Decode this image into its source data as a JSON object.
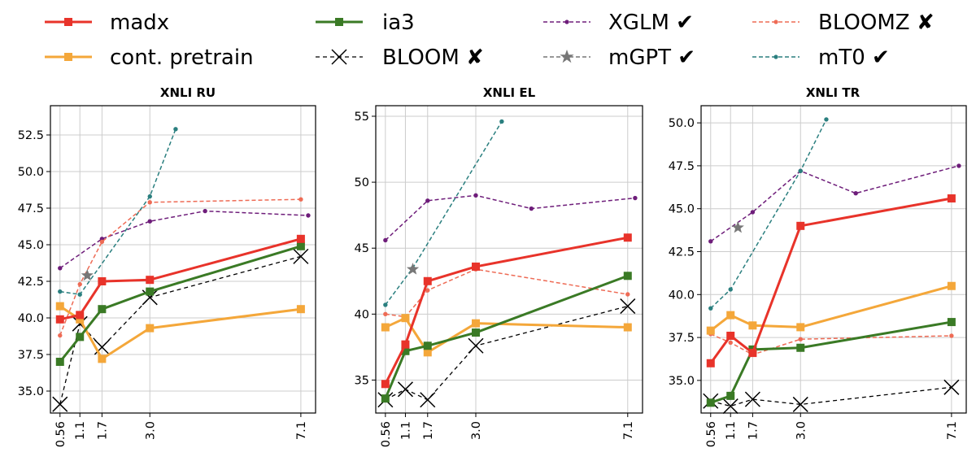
{
  "legend": {
    "entries": [
      {
        "label": "madx",
        "series": "madx"
      },
      {
        "label": "cont. pretrain",
        "series": "cont_pretrain"
      },
      {
        "label": "ia3",
        "series": "ia3"
      },
      {
        "label": "BLOOM ✘",
        "series": "bloom"
      },
      {
        "label": "XGLM ✔",
        "series": "xglm"
      },
      {
        "label": "mGPT ✔",
        "series": "mgpt"
      },
      {
        "label": "BLOOMZ ✘",
        "series": "bloomz"
      },
      {
        "label": "mT0 ✔",
        "series": "mt0"
      }
    ]
  },
  "styles": {
    "madx": {
      "color": "#e8332a",
      "width": 3,
      "dash": "",
      "marker": "square",
      "size": 10
    },
    "cont_pretrain": {
      "color": "#f4a73a",
      "width": 3,
      "dash": "",
      "marker": "square",
      "size": 10
    },
    "ia3": {
      "color": "#3a7a25",
      "width": 3,
      "dash": "",
      "marker": "square",
      "size": 10
    },
    "bloom": {
      "color": "#000000",
      "width": 1.3,
      "dash": "5,4",
      "marker": "x",
      "size": 18
    },
    "xglm": {
      "color": "#6e1d7a",
      "width": 1.5,
      "dash": "5,3",
      "marker": "dot",
      "size": 5
    },
    "mgpt": {
      "color": "#777777",
      "width": 1.5,
      "dash": "5,3",
      "marker": "star",
      "size": 16
    },
    "bloomz": {
      "color": "#ee6b55",
      "width": 1.5,
      "dash": "5,3",
      "marker": "dot",
      "size": 5
    },
    "mt0": {
      "color": "#2a7f7f",
      "width": 1.5,
      "dash": "5,3",
      "marker": "dot",
      "size": 5
    }
  },
  "chart_data": [
    {
      "type": "line",
      "title": "XNLI RU",
      "xlabel": "",
      "ylabel": "",
      "xlim": [
        0.3,
        7.5
      ],
      "ylim": [
        33.5,
        54.5
      ],
      "xticks": [
        "0.56",
        "1.1",
        "1.7",
        "3.0",
        "7.1"
      ],
      "xtick_values": [
        0.56,
        1.1,
        1.7,
        3.0,
        7.1
      ],
      "yticks": [
        "35.0",
        "37.5",
        "40.0",
        "42.5",
        "45.0",
        "47.5",
        "50.0",
        "52.5"
      ],
      "ytick_values": [
        35.0,
        37.5,
        40.0,
        42.5,
        45.0,
        47.5,
        50.0,
        52.5
      ],
      "series": [
        {
          "name": "xglm",
          "x": [
            0.56,
            1.7,
            3.0,
            4.5,
            7.3
          ],
          "y": [
            43.4,
            45.4,
            46.6,
            47.3,
            47.0
          ]
        },
        {
          "name": "bloomz",
          "x": [
            0.56,
            1.1,
            1.7,
            3.0,
            7.1
          ],
          "y": [
            38.8,
            42.3,
            45.2,
            47.9,
            48.1
          ]
        },
        {
          "name": "mt0",
          "x": [
            0.56,
            1.1,
            3.0,
            3.7
          ],
          "y": [
            41.8,
            41.6,
            48.3,
            52.9
          ]
        },
        {
          "name": "bloom",
          "x": [
            0.56,
            1.1,
            1.7,
            3.0,
            7.1
          ],
          "y": [
            34.1,
            39.6,
            38.0,
            41.4,
            44.2
          ]
        },
        {
          "name": "cont_pretrain",
          "x": [
            0.56,
            1.1,
            1.7,
            3.0,
            7.1
          ],
          "y": [
            40.8,
            39.9,
            37.2,
            39.3,
            40.6
          ]
        },
        {
          "name": "ia3",
          "x": [
            0.56,
            1.1,
            1.7,
            3.0,
            7.1
          ],
          "y": [
            37.0,
            38.7,
            40.6,
            41.8,
            44.9
          ]
        },
        {
          "name": "madx",
          "x": [
            0.56,
            1.1,
            1.7,
            3.0,
            7.1
          ],
          "y": [
            39.9,
            40.2,
            42.5,
            42.6,
            45.4
          ]
        },
        {
          "name": "mgpt",
          "x": [
            1.3
          ],
          "y": [
            42.9
          ]
        }
      ]
    },
    {
      "type": "line",
      "title": "XNLI EL",
      "xlabel": "",
      "ylabel": "",
      "xlim": [
        0.3,
        7.5
      ],
      "ylim": [
        32.5,
        55.8
      ],
      "xticks": [
        "0.56",
        "1.1",
        "1.7",
        "3.0",
        "7.1"
      ],
      "xtick_values": [
        0.56,
        1.1,
        1.7,
        3.0,
        7.1
      ],
      "yticks": [
        "35",
        "40",
        "45",
        "50",
        "55"
      ],
      "ytick_values": [
        35,
        40,
        45,
        50,
        55
      ],
      "series": [
        {
          "name": "xglm",
          "x": [
            0.56,
            1.7,
            3.0,
            4.5,
            7.3
          ],
          "y": [
            45.6,
            48.6,
            49.0,
            48.0,
            48.8
          ]
        },
        {
          "name": "bloomz",
          "x": [
            0.56,
            1.1,
            1.7,
            3.0,
            7.1
          ],
          "y": [
            40.0,
            39.8,
            41.8,
            43.4,
            41.5
          ]
        },
        {
          "name": "mt0",
          "x": [
            0.56,
            1.3,
            3.7
          ],
          "y": [
            40.7,
            43.5,
            54.6
          ]
        },
        {
          "name": "bloom",
          "x": [
            0.56,
            1.1,
            1.7,
            3.0,
            7.1
          ],
          "y": [
            33.5,
            34.3,
            33.5,
            37.6,
            40.6
          ]
        },
        {
          "name": "cont_pretrain",
          "x": [
            0.56,
            1.1,
            1.7,
            3.0,
            7.1
          ],
          "y": [
            39.0,
            39.7,
            37.1,
            39.3,
            39.0
          ]
        },
        {
          "name": "ia3",
          "x": [
            0.56,
            1.1,
            1.7,
            3.0,
            7.1
          ],
          "y": [
            33.6,
            37.2,
            37.6,
            38.6,
            42.9
          ]
        },
        {
          "name": "madx",
          "x": [
            0.56,
            1.1,
            1.7,
            3.0,
            7.1
          ],
          "y": [
            34.7,
            37.7,
            42.5,
            43.6,
            45.8
          ]
        },
        {
          "name": "mgpt",
          "x": [
            1.3
          ],
          "y": [
            43.4
          ]
        }
      ]
    },
    {
      "type": "line",
      "title": "XNLI TR",
      "xlabel": "",
      "ylabel": "",
      "xlim": [
        0.3,
        7.5
      ],
      "ylim": [
        33.1,
        51.0
      ],
      "xticks": [
        "0.56",
        "1.1",
        "1.7",
        "3.0",
        "7.1"
      ],
      "xtick_values": [
        0.56,
        1.1,
        1.7,
        3.0,
        7.1
      ],
      "yticks": [
        "35.0",
        "37.5",
        "40.0",
        "42.5",
        "45.0",
        "47.5",
        "50.0"
      ],
      "ytick_values": [
        35.0,
        37.5,
        40.0,
        42.5,
        45.0,
        47.5,
        50.0
      ],
      "series": [
        {
          "name": "xglm",
          "x": [
            0.56,
            1.7,
            3.0,
            4.5,
            7.3
          ],
          "y": [
            43.1,
            44.8,
            47.2,
            45.9,
            47.5
          ]
        },
        {
          "name": "bloomz",
          "x": [
            0.56,
            1.1,
            1.7,
            3.0,
            7.1
          ],
          "y": [
            37.7,
            37.2,
            36.5,
            37.4,
            37.6
          ]
        },
        {
          "name": "mt0",
          "x": [
            0.56,
            1.1,
            3.0,
            3.7
          ],
          "y": [
            39.2,
            40.3,
            47.2,
            50.2
          ]
        },
        {
          "name": "bloom",
          "x": [
            0.56,
            1.1,
            1.7,
            3.0,
            7.1
          ],
          "y": [
            33.8,
            33.5,
            33.9,
            33.6,
            34.6
          ]
        },
        {
          "name": "cont_pretrain",
          "x": [
            0.56,
            1.1,
            1.7,
            3.0,
            7.1
          ],
          "y": [
            37.9,
            38.8,
            38.2,
            38.1,
            40.5
          ]
        },
        {
          "name": "ia3",
          "x": [
            0.56,
            1.1,
            1.7,
            3.0,
            7.1
          ],
          "y": [
            33.7,
            34.1,
            36.8,
            36.9,
            38.4
          ]
        },
        {
          "name": "madx",
          "x": [
            0.56,
            1.1,
            1.7,
            3.0,
            7.1
          ],
          "y": [
            36.0,
            37.6,
            36.6,
            44.0,
            45.6
          ]
        },
        {
          "name": "mgpt",
          "x": [
            1.3
          ],
          "y": [
            43.9
          ]
        }
      ]
    }
  ]
}
